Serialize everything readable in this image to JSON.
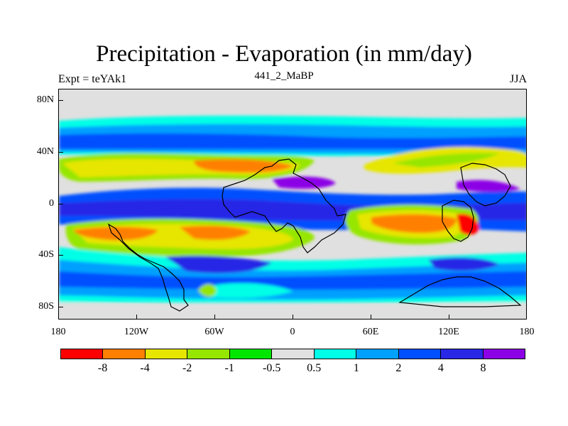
{
  "title": "Precipitation - Evaporation (in mm/day)",
  "subtitle_left": "Expt = teYAk1",
  "subtitle_center": "441_2_MaBP",
  "subtitle_right": "JJA",
  "y_axis_labels": [
    "80N",
    "40N",
    "0",
    "40S",
    "80S"
  ],
  "x_axis_labels": [
    "180",
    "120W",
    "60W",
    "0",
    "60E",
    "120E",
    "180"
  ],
  "colorbar": {
    "colors": [
      "#ff0000",
      "#ff8000",
      "#e6e600",
      "#96e600",
      "#00e600",
      "#e0e0e0",
      "#00ffe6",
      "#00a0ff",
      "#0050ff",
      "#2828e6",
      "#8c00e6"
    ],
    "labels": [
      "-8",
      "-4",
      "-2",
      "-1",
      "-0.5",
      "0.5",
      "1",
      "2",
      "4",
      "8"
    ]
  },
  "fill_colors": {
    "neutral": "#e0e0e0",
    "cyan": "#00ffe6",
    "light_blue": "#00a0ff",
    "blue": "#0050ff",
    "dark_blue": "#2828e6",
    "purple": "#8c00e6",
    "green": "#00e600",
    "lime": "#96e600",
    "yellow": "#e6e600",
    "orange": "#ff8000",
    "red": "#ff0000"
  }
}
